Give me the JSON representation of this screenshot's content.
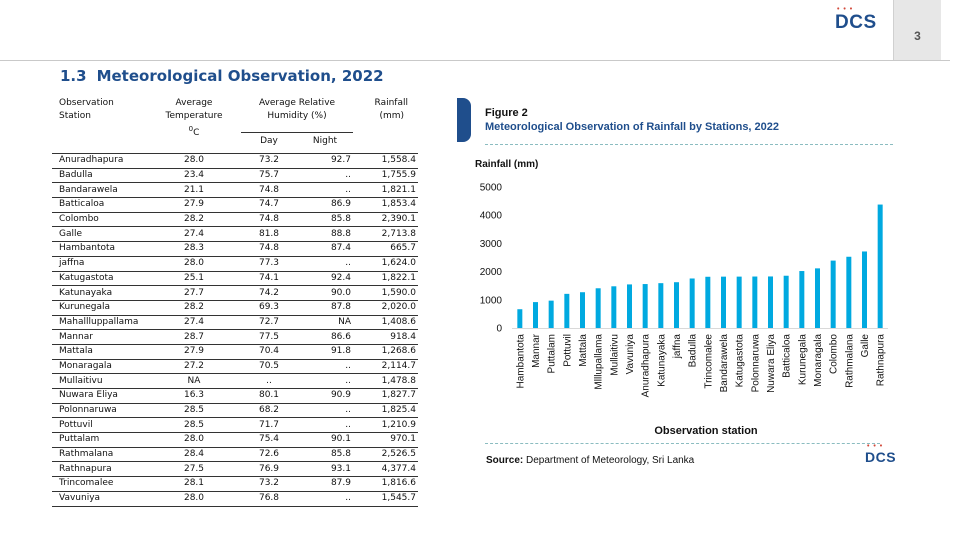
{
  "header": {
    "logo_text": "DCS",
    "page_number": "3"
  },
  "section": {
    "number": "1.3",
    "title": "Meteorological Observation, 2022"
  },
  "table": {
    "headers": {
      "station_line1": "Observation",
      "station_line2": "Station",
      "temp_line1": "Average",
      "temp_line2": "Temperature",
      "temp_unit": "C",
      "temp_unit_sup": "0",
      "humidity_line1": "Average Relative",
      "humidity_line2": "Humidity (%)",
      "day": "Day",
      "night": "Night",
      "rain_line1": "Rainfall",
      "rain_line2": "(mm)"
    },
    "rows": [
      {
        "station": "Anuradhapura",
        "temp": "28.0",
        "day": "73.2",
        "night": "92.7",
        "rain": "1,558.4"
      },
      {
        "station": "Badulla",
        "temp": "23.4",
        "day": "75.7",
        "night": "..",
        "rain": "1,755.9"
      },
      {
        "station": "Bandarawela",
        "temp": "21.1",
        "day": "74.8",
        "night": "..",
        "rain": "1,821.1"
      },
      {
        "station": "Batticaloa",
        "temp": "27.9",
        "day": "74.7",
        "night": "86.9",
        "rain": "1,853.4"
      },
      {
        "station": "Colombo",
        "temp": "28.2",
        "day": "74.8",
        "night": "85.8",
        "rain": "2,390.1"
      },
      {
        "station": "Galle",
        "temp": "27.4",
        "day": "81.8",
        "night": "88.8",
        "rain": "2,713.8"
      },
      {
        "station": "Hambantota",
        "temp": "28.3",
        "day": "74.8",
        "night": "87.4",
        "rain": "665.7"
      },
      {
        "station": "jaffna",
        "temp": "28.0",
        "day": "77.3",
        "night": "..",
        "rain": "1,624.0"
      },
      {
        "station": "Katugastota",
        "temp": "25.1",
        "day": "74.1",
        "night": "92.4",
        "rain": "1,822.1"
      },
      {
        "station": "Katunayaka",
        "temp": "27.7",
        "day": "74.2",
        "night": "90.0",
        "rain": "1,590.0"
      },
      {
        "station": "Kurunegala",
        "temp": "28.2",
        "day": "69.3",
        "night": "87.8",
        "rain": "2,020.0"
      },
      {
        "station": "Mahallluppallama",
        "temp": "27.4",
        "day": "72.7",
        "night": "NA",
        "rain": "1,408.6"
      },
      {
        "station": "Mannar",
        "temp": "28.7",
        "day": "77.5",
        "night": "86.6",
        "rain": "918.4"
      },
      {
        "station": "Mattala",
        "temp": "27.9",
        "day": "70.4",
        "night": "91.8",
        "rain": "1,268.6"
      },
      {
        "station": "Monaragala",
        "temp": "27.2",
        "day": "70.5",
        "night": "..",
        "rain": "2,114.7"
      },
      {
        "station": "Mullaitivu",
        "temp": "NA",
        "day": "..",
        "night": "..",
        "rain": "1,478.8"
      },
      {
        "station": "Nuwara Eliya",
        "temp": "16.3",
        "day": "80.1",
        "night": "90.9",
        "rain": "1,827.7"
      },
      {
        "station": "Polonnaruwa",
        "temp": "28.5",
        "day": "68.2",
        "night": "..",
        "rain": "1,825.4"
      },
      {
        "station": "Pottuvil",
        "temp": "28.5",
        "day": "71.7",
        "night": "..",
        "rain": "1,210.9"
      },
      {
        "station": "Puttalam",
        "temp": "28.0",
        "day": "75.4",
        "night": "90.1",
        "rain": "970.1"
      },
      {
        "station": "Rathmalana",
        "temp": "28.4",
        "day": "72.6",
        "night": "85.8",
        "rain": "2,526.5"
      },
      {
        "station": "Rathnapura",
        "temp": "27.5",
        "day": "76.9",
        "night": "93.1",
        "rain": "4,377.4"
      },
      {
        "station": "Trincomalee",
        "temp": "28.1",
        "day": "73.2",
        "night": "87.9",
        "rain": "1,816.6"
      },
      {
        "station": "Vavuniya",
        "temp": "28.0",
        "day": "76.8",
        "night": "..",
        "rain": "1,545.7"
      }
    ]
  },
  "figure": {
    "label": "Figure 2",
    "title": "Meteorological Observation of Rainfall by Stations, 2022",
    "source_label": "Source:",
    "source_text": "Department of Meteorology, Sri Lanka"
  },
  "colors": {
    "brand_blue": "#1f4e8c",
    "bar": "#00a9e0",
    "dash": "#8bbcc0"
  },
  "chart_data": {
    "type": "bar",
    "title": "",
    "ylabel": "Rainfall (mm)",
    "xlabel": "Observation station",
    "ylim": [
      0,
      5000
    ],
    "yticks": [
      0,
      1000,
      2000,
      3000,
      4000,
      5000
    ],
    "grid": false,
    "legend": "none",
    "categories": [
      "Hambantota",
      "Mannar",
      "Puttalam",
      "Pottuvil",
      "Mattala",
      "Mlllupallama",
      "Mullaitivu",
      "Vavuniya",
      "Anuradhapura",
      "Katunayaka",
      "jaffna",
      "Badulla",
      "Trincomalee",
      "Bandarawela",
      "Katugastota",
      "Polonnaruwa",
      "Nuwara Eliya",
      "Batticaloa",
      "Kurunegala",
      "Monaragala",
      "Colombo",
      "Rathmalana",
      "Galle",
      "Rathnapura"
    ],
    "values": [
      665.7,
      918.4,
      970.1,
      1210.9,
      1268.6,
      1408.6,
      1478.8,
      1545.7,
      1558.4,
      1590.0,
      1624.0,
      1755.9,
      1816.6,
      1821.1,
      1822.1,
      1825.4,
      1827.7,
      1853.4,
      2020.0,
      2114.7,
      2390.1,
      2526.5,
      2713.8,
      4377.4
    ]
  }
}
